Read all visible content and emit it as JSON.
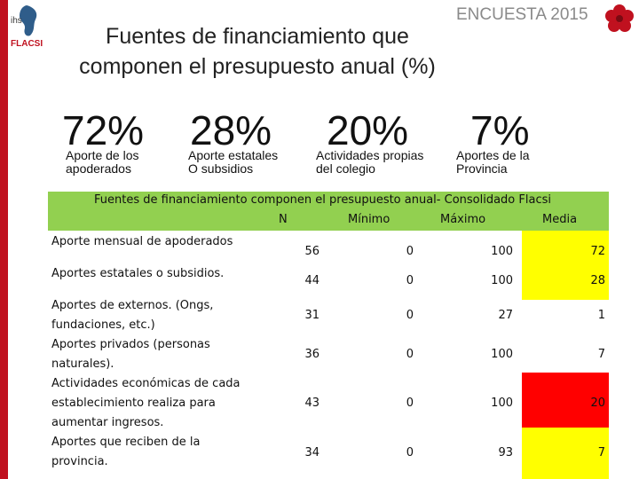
{
  "header": {
    "logo_top": "ihs",
    "logo_bottom": "FLACSI",
    "survey_label": "ENCUESTA 2015",
    "title_line1": "Fuentes de financiamiento que",
    "title_line2": "componen el presupuesto anual (%)"
  },
  "highlights": [
    {
      "value": "72%",
      "label_line1": "Aporte de los",
      "label_line2": "apoderados"
    },
    {
      "value": "28%",
      "label_line1": "Aporte estatales",
      "label_line2": "O subsidios"
    },
    {
      "value": "20%",
      "label_line1": "Actividades propias",
      "label_line2": "del colegio"
    },
    {
      "value": "7%",
      "label_line1": "Aportes de la",
      "label_line2": "Provincia"
    }
  ],
  "table": {
    "title": "Fuentes de financiamiento componen el presupuesto anual- Consolidado Flacsi",
    "columns": [
      "N",
      "Mínimo",
      "Máximo",
      "Media"
    ],
    "rows": [
      {
        "label_lines": [
          "Aporte mensual de apoderados"
        ],
        "n": "56",
        "min": "0",
        "max": "100",
        "media": "72"
      },
      {
        "label_lines": [
          "Aportes estatales o subsidios."
        ],
        "n": "44",
        "min": "0",
        "max": "100",
        "media": "28"
      },
      {
        "label_lines": [
          "Aportes de externos. (Ongs,",
          "fundaciones, etc.)"
        ],
        "n": "31",
        "min": "0",
        "max": "27",
        "media": "1"
      },
      {
        "label_lines": [
          "Aportes privados (personas",
          "naturales)."
        ],
        "n": "36",
        "min": "0",
        "max": "100",
        "media": "7"
      },
      {
        "label_lines": [
          "Actividades económicas de cada",
          "establecimiento realiza para",
          "aumentar ingresos."
        ],
        "n": "43",
        "min": "0",
        "max": "100",
        "media": "20"
      },
      {
        "label_lines": [
          "Aportes que reciben de la",
          "provincia."
        ],
        "n": "34",
        "min": "0",
        "max": "93",
        "media": "7"
      }
    ]
  },
  "colors": {
    "accent_red": "#c0111f",
    "header_green": "#92d050",
    "highlight_yellow": "#ffff00",
    "highlight_red": "#ff0000"
  }
}
